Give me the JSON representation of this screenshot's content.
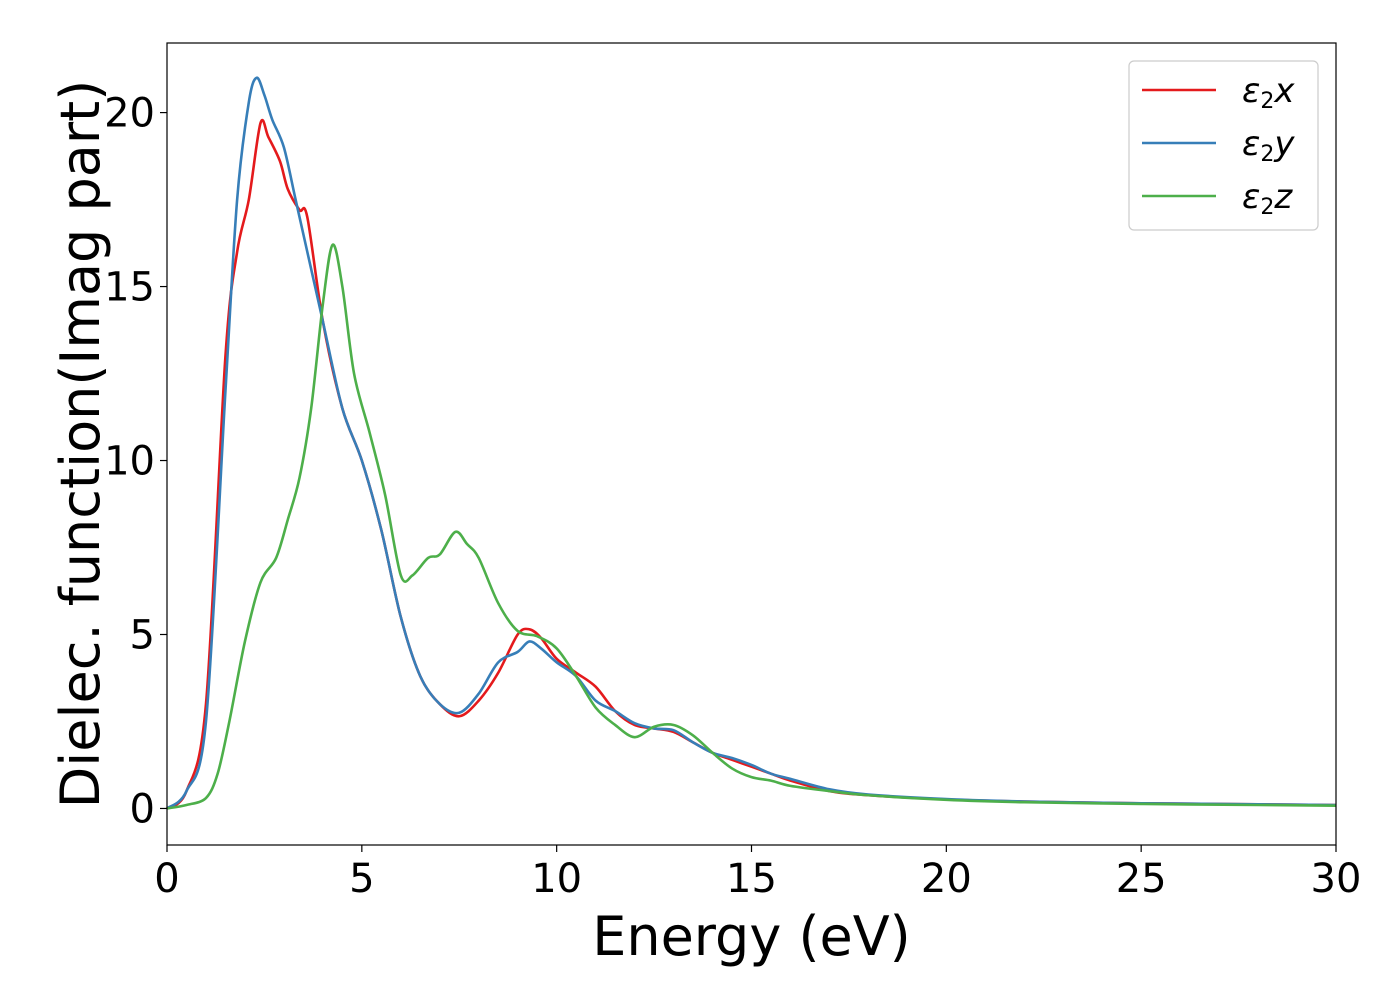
{
  "chart_data": {
    "type": "line",
    "title": "",
    "xlabel": "Energy (eV)",
    "ylabel": "Dielec. function(Imag part)",
    "xlim": [
      0,
      30
    ],
    "ylim": [
      -1.05,
      22.0
    ],
    "xticks": [
      0,
      5,
      10,
      15,
      20,
      25,
      30
    ],
    "yticks": [
      0,
      5,
      10,
      15,
      20
    ],
    "grid": false,
    "legend_position": "top-right",
    "series": [
      {
        "name": "ε2x",
        "legend": {
          "base": "ε",
          "sub": "2",
          "var": "x"
        },
        "color": "#e41a1c",
        "x": [
          0,
          0.5,
          1.0,
          1.5,
          1.8,
          2.1,
          2.4,
          2.6,
          2.9,
          3.1,
          3.4,
          3.6,
          4.0,
          4.5,
          5.0,
          5.5,
          6.0,
          6.5,
          7.0,
          7.5,
          8.0,
          8.5,
          9.0,
          9.3,
          9.6,
          10.0,
          10.5,
          11.0,
          11.5,
          12.0,
          12.5,
          13.0,
          13.5,
          14.0,
          14.5,
          15.0,
          15.5,
          16.0,
          17.0,
          18.0,
          20.0,
          22.0,
          25.0,
          28.0,
          30.0
        ],
        "y": [
          0.0,
          0.5,
          3.0,
          13.0,
          16.0,
          17.5,
          19.7,
          19.3,
          18.6,
          17.8,
          17.2,
          17.0,
          14.0,
          11.5,
          10.0,
          8.0,
          5.5,
          3.8,
          3.0,
          2.65,
          3.1,
          3.9,
          5.0,
          5.15,
          4.9,
          4.3,
          3.9,
          3.5,
          2.8,
          2.4,
          2.3,
          2.2,
          1.9,
          1.6,
          1.4,
          1.2,
          1.0,
          0.8,
          0.5,
          0.38,
          0.26,
          0.2,
          0.15,
          0.12,
          0.1
        ]
      },
      {
        "name": "ε2y",
        "legend": {
          "base": "ε",
          "sub": "2",
          "var": "y"
        },
        "color": "#377eb8",
        "x": [
          0,
          0.5,
          1.0,
          1.5,
          1.8,
          2.1,
          2.3,
          2.5,
          2.7,
          3.0,
          3.3,
          3.6,
          4.0,
          4.5,
          5.0,
          5.5,
          6.0,
          6.5,
          7.0,
          7.5,
          8.0,
          8.5,
          9.0,
          9.3,
          9.6,
          10.0,
          10.5,
          11.0,
          11.5,
          12.0,
          12.5,
          13.0,
          13.5,
          14.0,
          14.5,
          15.0,
          15.5,
          16.0,
          17.0,
          18.0,
          20.0,
          22.0,
          25.0,
          28.0,
          30.0
        ],
        "y": [
          0.0,
          0.5,
          2.5,
          12.0,
          17.5,
          20.3,
          21.0,
          20.5,
          19.8,
          19.0,
          17.5,
          16.0,
          14.0,
          11.5,
          10.0,
          8.0,
          5.5,
          3.8,
          3.0,
          2.75,
          3.3,
          4.2,
          4.5,
          4.8,
          4.6,
          4.2,
          3.8,
          3.1,
          2.8,
          2.45,
          2.3,
          2.25,
          1.9,
          1.6,
          1.45,
          1.25,
          1.0,
          0.85,
          0.55,
          0.4,
          0.27,
          0.2,
          0.15,
          0.12,
          0.1
        ]
      },
      {
        "name": "ε2z",
        "legend": {
          "base": "ε",
          "sub": "2",
          "var": "z"
        },
        "color": "#4daf4a",
        "x": [
          0,
          0.5,
          1.0,
          1.3,
          1.6,
          2.0,
          2.4,
          2.8,
          3.1,
          3.4,
          3.7,
          4.0,
          4.25,
          4.5,
          4.8,
          5.2,
          5.6,
          6.0,
          6.3,
          6.7,
          7.0,
          7.4,
          7.7,
          8.0,
          8.5,
          9.0,
          9.5,
          10.0,
          10.5,
          11.0,
          11.5,
          12.0,
          12.5,
          13.0,
          13.5,
          14.0,
          14.5,
          15.0,
          15.5,
          16.0,
          17.0,
          18.0,
          20.0,
          22.0,
          25.0,
          28.0,
          30.0
        ],
        "y": [
          0.0,
          0.1,
          0.3,
          1.0,
          2.5,
          4.8,
          6.5,
          7.2,
          8.3,
          9.5,
          11.5,
          14.5,
          16.2,
          15.0,
          12.5,
          10.8,
          9.0,
          6.7,
          6.7,
          7.2,
          7.3,
          7.95,
          7.6,
          7.2,
          5.9,
          5.1,
          4.95,
          4.6,
          3.8,
          2.9,
          2.4,
          2.05,
          2.35,
          2.4,
          2.1,
          1.6,
          1.15,
          0.9,
          0.8,
          0.65,
          0.5,
          0.38,
          0.25,
          0.18,
          0.13,
          0.1,
          0.08
        ]
      }
    ]
  }
}
